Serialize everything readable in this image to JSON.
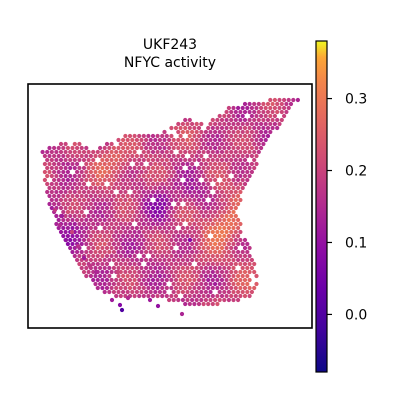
{
  "chart_data": {
    "type": "heatmap",
    "title": "UKF243",
    "subtitle": "NFYC activity",
    "xlabel": "",
    "ylabel": "",
    "grid": false,
    "legend": "colorbar-right",
    "colormap": "plasma",
    "colorbar": {
      "min": -0.08,
      "max": 0.38,
      "ticks": [
        0.0,
        0.1,
        0.2,
        0.3
      ],
      "tick_labels": [
        "0.0",
        "0.1",
        "0.2",
        "0.3"
      ]
    },
    "hotspots": [
      {
        "x": 0.7,
        "y": 0.6,
        "value": 0.36
      },
      {
        "x": 0.28,
        "y": 0.29,
        "value": 0.3
      },
      {
        "x": 0.87,
        "y": 0.8,
        "value": 0.28
      },
      {
        "x": 0.75,
        "y": 0.45,
        "value": 0.25
      },
      {
        "x": 0.45,
        "y": 0.15,
        "value": 0.25
      },
      {
        "x": 0.33,
        "y": 0.38,
        "value": 0.24
      },
      {
        "x": 0.62,
        "y": 0.14,
        "value": 0.22
      },
      {
        "x": 0.55,
        "y": 0.58,
        "value": 0.22
      },
      {
        "x": 0.2,
        "y": 0.52,
        "value": 0.21
      },
      {
        "x": 0.3,
        "y": 0.65,
        "value": 0.2
      },
      {
        "x": 0.52,
        "y": 0.33,
        "value": 0.2
      },
      {
        "x": 0.18,
        "y": 0.75,
        "value": 0.2
      },
      {
        "x": 0.4,
        "y": 0.72,
        "value": 0.16
      },
      {
        "x": 0.78,
        "y": 0.15,
        "value": 0.16
      },
      {
        "x": 0.8,
        "y": 0.72,
        "value": 0.18
      },
      {
        "x": 0.65,
        "y": 0.88,
        "value": 0.17
      },
      {
        "x": 0.12,
        "y": 0.62,
        "value": 0.08
      },
      {
        "x": 0.45,
        "y": 0.5,
        "value": 0.06
      },
      {
        "x": 0.35,
        "y": 0.05,
        "value": 0.06
      },
      {
        "x": 0.6,
        "y": 0.45,
        "value": 0.08
      },
      {
        "x": 0.25,
        "y": 0.05,
        "value": 0.02
      }
    ]
  }
}
